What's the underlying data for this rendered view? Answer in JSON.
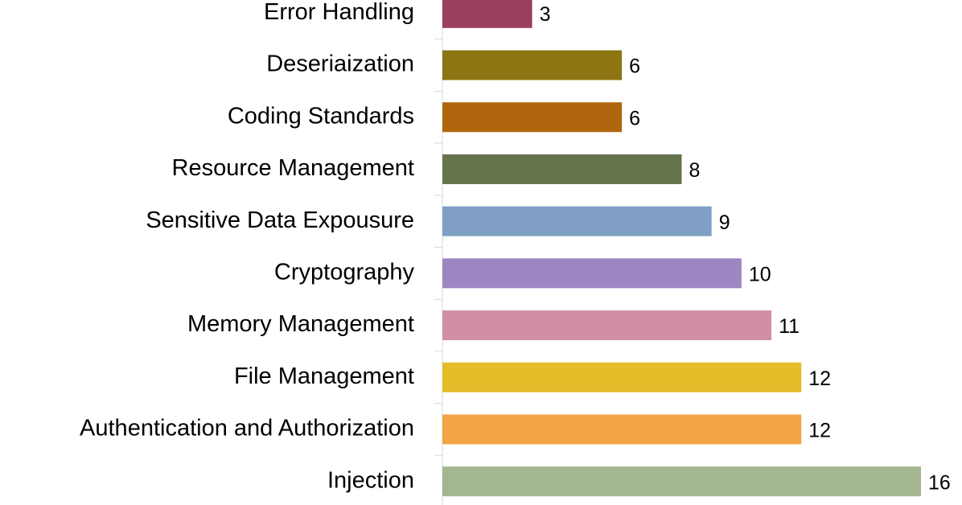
{
  "chart_data": {
    "type": "hbar",
    "categories": [
      "Error Handling",
      "Deseriaization",
      "Coding Standards",
      "Resource Management",
      "Sensitive Data Expousure",
      "Cryptography",
      "Memory Management",
      "File Management",
      "Authentication and Authorization",
      "Injection"
    ],
    "values": [
      3,
      6,
      6,
      8,
      9,
      10,
      11,
      12,
      12,
      16
    ],
    "colors": [
      "#9b3f61",
      "#8c7512",
      "#b0660f",
      "#66744e",
      "#7fa0c4",
      "#9d86c2",
      "#d18fa5",
      "#e5bd2a",
      "#f2a444",
      "#a4b591"
    ],
    "xlim": [
      0,
      16
    ]
  }
}
